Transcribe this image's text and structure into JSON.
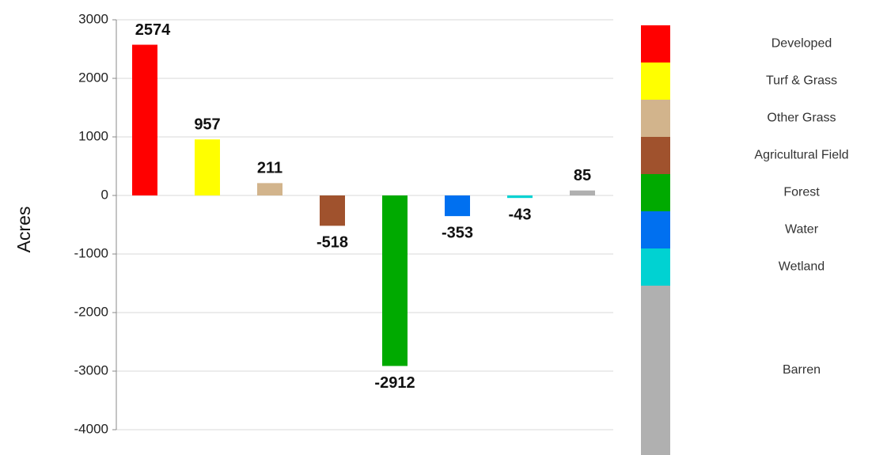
{
  "chart_data": {
    "type": "bar",
    "y_label": "Acres",
    "categories": [
      "Developed",
      "Turf & Grass",
      "Other Grass",
      "Agricultural Field",
      "Forest",
      "Water",
      "Wetland",
      "Barren"
    ],
    "values": [
      2574,
      957,
      211,
      -518,
      -2912,
      -353,
      -43,
      85
    ],
    "colors": [
      "#ff0000",
      "#ffff00",
      "#d2b48c",
      "#a0522d",
      "#00aa00",
      "#0070f0",
      "#00d2d2",
      "#b0b0b0"
    ],
    "ylim": [
      -4000,
      3000
    ],
    "yticks": [
      -4000,
      -3000,
      -2000,
      -1000,
      0,
      1000,
      2000,
      3000
    ],
    "grid": true,
    "legend": "right"
  }
}
